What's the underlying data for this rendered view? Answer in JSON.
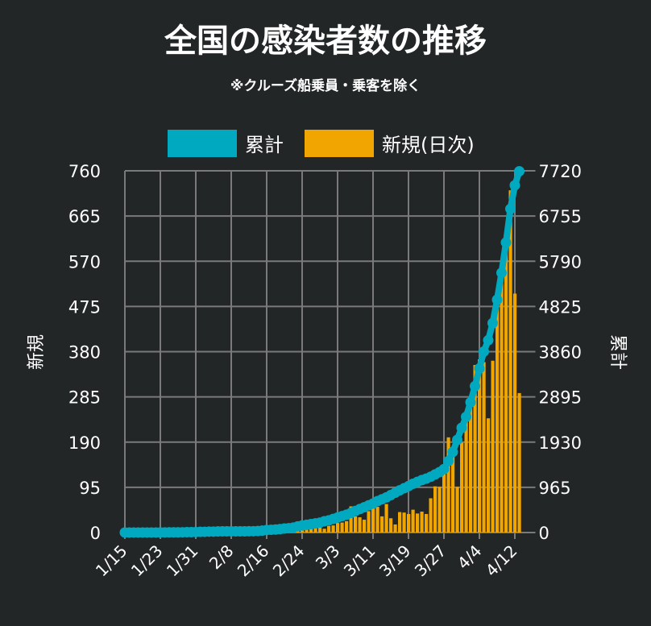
{
  "title": "全国の感染者数の推移",
  "subtitle": "※クルーズ船乗員・乗客を除く",
  "colors": {
    "cumulative": "#00a9c0",
    "daily": "#f0a500",
    "grid": "#7a7a7a",
    "background": "#222626"
  },
  "chart_data": {
    "type": "bar+line",
    "title": "全国の感染者数の推移",
    "legend": [
      "累計",
      "新規(日次)"
    ],
    "legend_position": "top",
    "ylabel_left": "新規",
    "ylabel_right": "累計",
    "ylim_left": [
      0,
      760
    ],
    "ylim_right": [
      0,
      7720
    ],
    "yticks_left": [
      "0",
      "95",
      "190",
      "285",
      "380",
      "475",
      "570",
      "665",
      "760"
    ],
    "yticks_right": [
      "0",
      "965",
      "1930",
      "2895",
      "3860",
      "4825",
      "5790",
      "6755",
      "7720"
    ],
    "xticks": [
      "1/15",
      "1/23",
      "1/31",
      "2/8",
      "2/16",
      "2/24",
      "3/3",
      "3/11",
      "3/19",
      "3/27",
      "4/4",
      "4/12"
    ],
    "x_start": "1/15",
    "x_end": "4/13",
    "grid": true,
    "series": [
      {
        "name": "新規(日次)",
        "type": "bar",
        "values": [
          1,
          0,
          0,
          0,
          0,
          0,
          0,
          0,
          1,
          1,
          1,
          0,
          0,
          1,
          3,
          1,
          2,
          1,
          2,
          0,
          0,
          0,
          0,
          0,
          1,
          0,
          0,
          0,
          1,
          1,
          6,
          10,
          5,
          5,
          4,
          9,
          6,
          10,
          2,
          5,
          8,
          9,
          10,
          10,
          11,
          8,
          14,
          15,
          20,
          21,
          24,
          55,
          34,
          32,
          27,
          45,
          51,
          54,
          34,
          60,
          30,
          17,
          43,
          42,
          39,
          48,
          40,
          44,
          39,
          72,
          97,
          96,
          124,
          200,
          172,
          96,
          189,
          240,
          265,
          352,
          364,
          358,
          240,
          361,
          482,
          572,
          594,
          719,
          502,
          293
        ]
      },
      {
        "name": "累計",
        "type": "line",
        "values": [
          1,
          1,
          1,
          1,
          1,
          1,
          1,
          1,
          2,
          3,
          4,
          4,
          4,
          5,
          8,
          9,
          11,
          14,
          16,
          20,
          20,
          23,
          25,
          25,
          25,
          25,
          25,
          26,
          28,
          29,
          33,
          41,
          53,
          59,
          65,
          73,
          85,
          93,
          105,
          132,
          150,
          165,
          180,
          195,
          210,
          240,
          260,
          290,
          320,
          350,
          380,
          420,
          460,
          500,
          540,
          580,
          620,
          670,
          710,
          750,
          800,
          850,
          900,
          945,
          990,
          1040,
          1080,
          1120,
          1150,
          1190,
          1240,
          1290,
          1354,
          1525,
          1720,
          1977,
          2235,
          2470,
          2780,
          3124,
          3502,
          3863,
          4104,
          4470,
          4970,
          5543,
          6190,
          6907,
          7410,
          7710
        ]
      }
    ]
  }
}
